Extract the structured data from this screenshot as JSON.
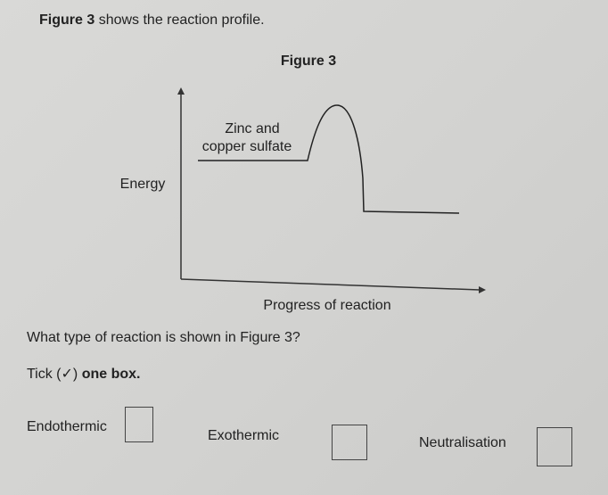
{
  "intro": {
    "figure_ref": "Figure 3",
    "text": "shows the reaction profile."
  },
  "figure": {
    "title": "Figure 3",
    "reactant_label_line1": "Zinc and",
    "reactant_label_line2": "copper sulfate",
    "y_axis_label": "Energy",
    "x_axis_label": "Progress of reaction"
  },
  "question": "What type of reaction is shown in Figure 3?",
  "instruction": {
    "before": "Tick (✓)",
    "bold": "one box."
  },
  "options": [
    "Endothermic",
    "Exothermic",
    "Neutralisation"
  ]
}
